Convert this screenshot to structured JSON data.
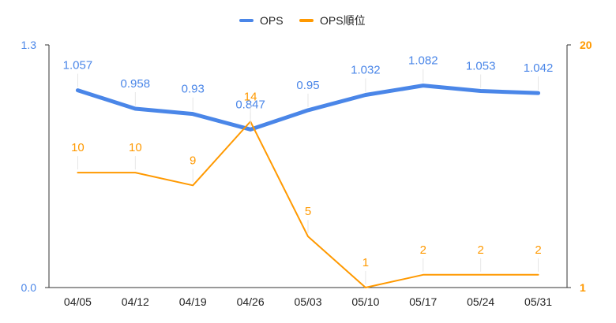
{
  "chart_data": {
    "type": "line",
    "categories": [
      "04/05",
      "04/12",
      "04/19",
      "04/26",
      "05/03",
      "05/10",
      "05/17",
      "05/24",
      "05/31"
    ],
    "series": [
      {
        "name": "OPS",
        "axis": "left",
        "color": "#4a86e8",
        "values": [
          1.057,
          0.958,
          0.93,
          0.847,
          0.95,
          1.032,
          1.082,
          1.053,
          1.042
        ],
        "labels": [
          "1.057",
          "0.958",
          "0.93",
          "0.847",
          "0.95",
          "1.032",
          "1.082",
          "1.053",
          "1.042"
        ]
      },
      {
        "name": "OPS順位",
        "axis": "right",
        "color": "#ff9900",
        "values": [
          10,
          10,
          9,
          14,
          5,
          1,
          2,
          2,
          2
        ],
        "labels": [
          "10",
          "10",
          "9",
          "14",
          "5",
          "1",
          "2",
          "2",
          "2"
        ]
      }
    ],
    "y_left": {
      "min": 0,
      "max": 1.3,
      "ticks": [
        "0.0",
        "1.3"
      ],
      "color": "#4a86e8"
    },
    "y_right": {
      "min": 1,
      "max": 20,
      "ticks": [
        "1",
        "20"
      ],
      "color": "#ff9900"
    },
    "legend": "top-center",
    "grid": false
  }
}
